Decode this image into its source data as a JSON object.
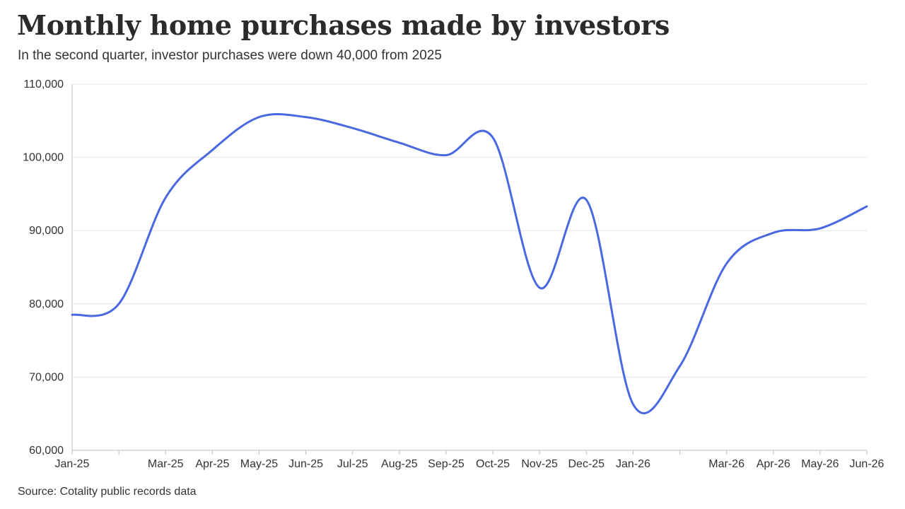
{
  "header": {
    "title": "Monthly home purchases made by investors",
    "subtitle": "In the second quarter, investor purchases were down 40,000 from 2025"
  },
  "footer": {
    "source": "Source: Cotality public records data"
  },
  "colors": {
    "line": "#4a68e0",
    "grid": "#e6e6e6",
    "axis": "#bdbdbd",
    "text": "#333333"
  },
  "chart_data": {
    "type": "line",
    "title": "Monthly home purchases made by investors",
    "subtitle": "In the second quarter, investor purchases were down 40,000 from 2025",
    "xlabel": "",
    "ylabel": "",
    "ylim": [
      60000,
      110000
    ],
    "yticks": [
      60000,
      70000,
      80000,
      90000,
      100000,
      110000
    ],
    "ytick_labels": [
      "60,000",
      "70,000",
      "80,000",
      "90,000",
      "100,000",
      "110,000"
    ],
    "x": [
      "Jan-25",
      "Feb-25",
      "Mar-25",
      "Apr-25",
      "May-25",
      "Jun-25",
      "Jul-25",
      "Aug-25",
      "Sep-25",
      "Oct-25",
      "Nov-25",
      "Dec-25",
      "Jan-26",
      "Feb-26",
      "Mar-26",
      "Apr-26",
      "May-26",
      "Jun-26"
    ],
    "xtick_labels": [
      "Jan-25",
      "",
      "Mar-25",
      "Apr-25",
      "May-25",
      "Jun-25",
      "Jul-25",
      "Aug-25",
      "Sep-25",
      "Oct-25",
      "Nov-25",
      "Dec-25",
      "Jan-26",
      "",
      "Mar-26",
      "Apr-26",
      "May-26",
      "Jun-26"
    ],
    "series": [
      {
        "values": [
          78500,
          80000,
          94500,
          101000,
          105500,
          105500,
          104000,
          102000,
          100300,
          102700,
          82200,
          94200,
          66300,
          71500,
          85500,
          89700,
          90300,
          93300
        ]
      }
    ],
    "grid": true,
    "legend": "none",
    "source": "Source: Cotality public records data"
  }
}
